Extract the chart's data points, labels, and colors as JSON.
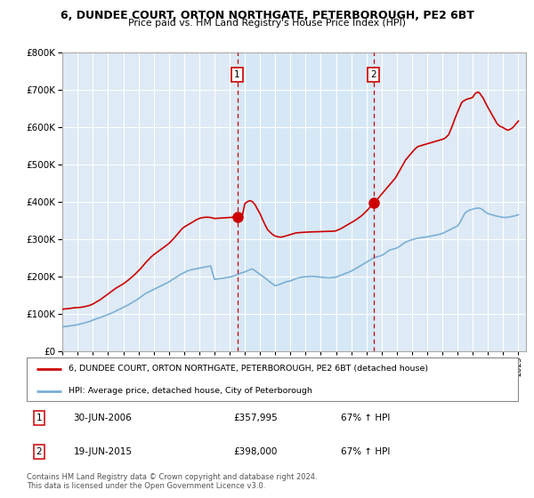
{
  "title": "6, DUNDEE COURT, ORTON NORTHGATE, PETERBOROUGH, PE2 6BT",
  "subtitle": "Price paid vs. HM Land Registry's House Price Index (HPI)",
  "legend_line1": "6, DUNDEE COURT, ORTON NORTHGATE, PETERBOROUGH, PE2 6BT (detached house)",
  "legend_line2": "HPI: Average price, detached house, City of Peterborough",
  "table_row1": [
    "1",
    "30-JUN-2006",
    "£357,995",
    "67% ↑ HPI"
  ],
  "table_row2": [
    "2",
    "19-JUN-2015",
    "£398,000",
    "67% ↑ HPI"
  ],
  "footnote": "Contains HM Land Registry data © Crown copyright and database right 2024.\nThis data is licensed under the Open Government Licence v3.0.",
  "sale1_year": 2006.5,
  "sale2_year": 2015.47,
  "sale1_price": 357995,
  "sale2_price": 398000,
  "red_color": "#cc0000",
  "blue_color": "#7bafd4",
  "shade_color": "#d6e8f5",
  "background_color": "#ffffff",
  "grid_color": "#cccccc",
  "ylim": [
    0,
    800000
  ],
  "xlim_start": 1995.0,
  "xlim_end": 2025.5,
  "hpi_x": [
    1995.0,
    1995.08,
    1995.17,
    1995.25,
    1995.33,
    1995.42,
    1995.5,
    1995.58,
    1995.67,
    1995.75,
    1995.83,
    1995.92,
    1996.0,
    1996.17,
    1996.33,
    1996.5,
    1996.67,
    1996.83,
    1997.0,
    1997.25,
    1997.5,
    1997.75,
    1998.0,
    1998.25,
    1998.5,
    1998.75,
    1999.0,
    1999.25,
    1999.5,
    1999.75,
    2000.0,
    2000.25,
    2000.5,
    2000.75,
    2001.0,
    2001.25,
    2001.5,
    2001.75,
    2002.0,
    2002.25,
    2002.5,
    2002.75,
    2003.0,
    2003.25,
    2003.5,
    2003.75,
    2004.0,
    2004.25,
    2004.5,
    2004.75,
    2005.0,
    2005.17,
    2005.33,
    2005.5,
    2005.67,
    2005.83,
    2006.0,
    2006.17,
    2006.33,
    2006.5,
    2006.67,
    2006.83,
    2007.0,
    2007.17,
    2007.33,
    2007.5,
    2007.67,
    2007.83,
    2008.0,
    2008.25,
    2008.5,
    2008.75,
    2009.0,
    2009.25,
    2009.5,
    2009.75,
    2010.0,
    2010.25,
    2010.5,
    2010.75,
    2011.0,
    2011.25,
    2011.5,
    2011.75,
    2012.0,
    2012.25,
    2012.5,
    2012.75,
    2013.0,
    2013.25,
    2013.5,
    2013.75,
    2014.0,
    2014.17,
    2014.33,
    2014.5,
    2014.67,
    2014.83,
    2015.0,
    2015.17,
    2015.33,
    2015.5,
    2015.67,
    2015.83,
    2016.0,
    2016.17,
    2016.33,
    2016.5,
    2016.67,
    2016.83,
    2017.0,
    2017.17,
    2017.33,
    2017.5,
    2017.67,
    2017.83,
    2018.0,
    2018.17,
    2018.33,
    2018.5,
    2018.67,
    2018.83,
    2019.0,
    2019.25,
    2019.5,
    2019.75,
    2020.0,
    2020.25,
    2020.5,
    2020.75,
    2021.0,
    2021.17,
    2021.33,
    2021.5,
    2021.67,
    2021.83,
    2022.0,
    2022.17,
    2022.33,
    2022.5,
    2022.67,
    2022.83,
    2023.0,
    2023.25,
    2023.5,
    2023.75,
    2024.0,
    2024.25,
    2024.5,
    2024.75,
    2025.0
  ],
  "hpi_y": [
    65000,
    65500,
    66000,
    66200,
    66500,
    67000,
    67500,
    68000,
    68500,
    69000,
    69500,
    70000,
    71000,
    72500,
    74000,
    76000,
    78000,
    80000,
    83000,
    87000,
    90000,
    94000,
    98000,
    102000,
    107000,
    112000,
    117000,
    122000,
    128000,
    134000,
    140000,
    148000,
    155000,
    160000,
    165000,
    170000,
    175000,
    180000,
    185000,
    192000,
    198000,
    205000,
    210000,
    215000,
    218000,
    220000,
    222000,
    224000,
    226000,
    228000,
    192000,
    193000,
    194000,
    195000,
    196000,
    197000,
    198000,
    200000,
    202000,
    205000,
    208000,
    210000,
    212000,
    215000,
    218000,
    220000,
    215000,
    210000,
    205000,
    198000,
    190000,
    182000,
    175000,
    178000,
    182000,
    186000,
    188000,
    192000,
    196000,
    198000,
    199000,
    200000,
    200000,
    199000,
    198000,
    197000,
    196000,
    197000,
    198000,
    202000,
    206000,
    210000,
    214000,
    218000,
    222000,
    226000,
    230000,
    234000,
    238000,
    242000,
    246000,
    250000,
    252000,
    254000,
    256000,
    260000,
    265000,
    270000,
    272000,
    274000,
    276000,
    280000,
    285000,
    290000,
    293000,
    296000,
    298000,
    300000,
    302000,
    303000,
    304000,
    305000,
    306000,
    308000,
    310000,
    312000,
    315000,
    320000,
    325000,
    330000,
    335000,
    345000,
    358000,
    370000,
    375000,
    378000,
    380000,
    382000,
    383000,
    382000,
    378000,
    372000,
    368000,
    365000,
    362000,
    360000,
    358000,
    358000,
    360000,
    362000,
    365000
  ],
  "red_x": [
    1995.0,
    1995.08,
    1995.17,
    1995.25,
    1995.33,
    1995.42,
    1995.5,
    1995.58,
    1995.67,
    1995.75,
    1995.83,
    1995.92,
    1996.0,
    1996.17,
    1996.33,
    1996.5,
    1996.67,
    1996.83,
    1997.0,
    1997.17,
    1997.33,
    1997.5,
    1997.67,
    1997.83,
    1998.0,
    1998.17,
    1998.33,
    1998.5,
    1998.67,
    1998.83,
    1999.0,
    1999.17,
    1999.33,
    1999.5,
    1999.67,
    1999.83,
    2000.0,
    2000.17,
    2000.33,
    2000.5,
    2000.67,
    2000.83,
    2001.0,
    2001.17,
    2001.33,
    2001.5,
    2001.67,
    2001.83,
    2002.0,
    2002.17,
    2002.33,
    2002.5,
    2002.67,
    2002.83,
    2003.0,
    2003.17,
    2003.33,
    2003.5,
    2003.67,
    2003.83,
    2004.0,
    2004.17,
    2004.33,
    2004.5,
    2004.67,
    2004.83,
    2005.0,
    2005.17,
    2005.33,
    2005.5,
    2005.67,
    2005.83,
    2006.0,
    2006.17,
    2006.33,
    2006.5,
    2006.67,
    2006.83,
    2007.0,
    2007.17,
    2007.33,
    2007.5,
    2007.67,
    2007.83,
    2008.0,
    2008.17,
    2008.33,
    2008.5,
    2008.67,
    2008.83,
    2009.0,
    2009.17,
    2009.33,
    2009.5,
    2009.67,
    2009.83,
    2010.0,
    2010.17,
    2010.33,
    2010.5,
    2010.67,
    2010.83,
    2011.0,
    2011.17,
    2011.33,
    2011.5,
    2011.67,
    2011.83,
    2012.0,
    2012.17,
    2012.33,
    2012.5,
    2012.67,
    2012.83,
    2013.0,
    2013.17,
    2013.33,
    2013.5,
    2013.67,
    2013.83,
    2014.0,
    2014.17,
    2014.33,
    2014.5,
    2014.67,
    2014.83,
    2015.0,
    2015.17,
    2015.33,
    2015.47,
    2015.67,
    2015.83,
    2016.0,
    2016.08,
    2016.17,
    2016.25,
    2016.33,
    2016.42,
    2016.5,
    2016.58,
    2016.67,
    2016.75,
    2016.83,
    2016.92,
    2017.0,
    2017.08,
    2017.17,
    2017.25,
    2017.33,
    2017.42,
    2017.5,
    2017.58,
    2017.67,
    2017.75,
    2017.83,
    2017.92,
    2018.0,
    2018.08,
    2018.17,
    2018.25,
    2018.33,
    2018.42,
    2018.5,
    2018.58,
    2018.67,
    2018.75,
    2018.83,
    2018.92,
    2019.0,
    2019.08,
    2019.17,
    2019.25,
    2019.33,
    2019.42,
    2019.5,
    2019.58,
    2019.67,
    2019.75,
    2019.83,
    2019.92,
    2020.0,
    2020.08,
    2020.17,
    2020.25,
    2020.33,
    2020.42,
    2020.5,
    2020.58,
    2020.67,
    2020.75,
    2020.83,
    2020.92,
    2021.0,
    2021.08,
    2021.17,
    2021.25,
    2021.33,
    2021.42,
    2021.5,
    2021.58,
    2021.67,
    2021.75,
    2021.83,
    2021.92,
    2022.0,
    2022.08,
    2022.17,
    2022.25,
    2022.33,
    2022.42,
    2022.5,
    2022.58,
    2022.67,
    2022.75,
    2022.83,
    2022.92,
    2023.0,
    2023.08,
    2023.17,
    2023.25,
    2023.33,
    2023.42,
    2023.5,
    2023.58,
    2023.67,
    2023.75,
    2023.83,
    2023.92,
    2024.0,
    2024.08,
    2024.17,
    2024.25,
    2024.33,
    2024.42,
    2024.5,
    2024.58,
    2024.67,
    2024.75,
    2024.83,
    2024.92,
    2025.0
  ],
  "red_y": [
    112000,
    112500,
    113000,
    113200,
    113500,
    114000,
    114500,
    115000,
    115500,
    115800,
    116000,
    116200,
    116500,
    117000,
    118000,
    119500,
    121000,
    123000,
    126000,
    130000,
    134000,
    138000,
    143000,
    148000,
    153000,
    158000,
    163000,
    168000,
    172000,
    176000,
    180000,
    185000,
    190000,
    196000,
    202000,
    208000,
    215000,
    222000,
    230000,
    238000,
    245000,
    252000,
    258000,
    263000,
    268000,
    273000,
    278000,
    283000,
    288000,
    295000,
    302000,
    310000,
    318000,
    326000,
    332000,
    336000,
    340000,
    344000,
    348000,
    352000,
    355000,
    357000,
    358000,
    358500,
    358000,
    357000,
    355000,
    355500,
    356000,
    356500,
    357000,
    357500,
    357995,
    358200,
    358500,
    357995,
    360000,
    362000,
    395000,
    400000,
    403000,
    400000,
    392000,
    380000,
    368000,
    352000,
    338000,
    325000,
    318000,
    312000,
    308000,
    306000,
    305000,
    306000,
    308000,
    310000,
    312000,
    314000,
    316000,
    317000,
    317500,
    318000,
    318500,
    318800,
    319000,
    319200,
    319500,
    319800,
    320000,
    320200,
    320400,
    320600,
    320800,
    321000,
    322000,
    325000,
    328000,
    332000,
    336000,
    340000,
    344000,
    348000,
    352000,
    357000,
    362000,
    368000,
    375000,
    382000,
    390000,
    398000,
    405000,
    412000,
    420000,
    424000,
    428000,
    432000,
    436000,
    440000,
    444000,
    448000,
    452000,
    456000,
    460000,
    464000,
    470000,
    476000,
    482000,
    488000,
    494000,
    500000,
    506000,
    512000,
    516000,
    520000,
    524000,
    528000,
    532000,
    536000,
    540000,
    543000,
    546000,
    548000,
    549000,
    550000,
    551000,
    552000,
    553000,
    554000,
    555000,
    556000,
    557000,
    558000,
    559000,
    560000,
    561000,
    562000,
    563000,
    564000,
    565000,
    566000,
    567000,
    568000,
    570000,
    573000,
    576000,
    580000,
    588000,
    596000,
    605000,
    614000,
    623000,
    632000,
    640000,
    648000,
    656000,
    664000,
    668000,
    670000,
    672000,
    674000,
    675000,
    676000,
    677000,
    678000,
    680000,
    685000,
    690000,
    692000,
    693000,
    692000,
    688000,
    683000,
    678000,
    672000,
    665000,
    658000,
    652000,
    646000,
    640000,
    634000,
    628000,
    622000,
    616000,
    610000,
    606000,
    603000,
    601000,
    600000,
    598000,
    596000,
    594000,
    592000,
    592000,
    593000,
    595000,
    597000,
    600000,
    604000,
    608000,
    612000,
    616000
  ]
}
